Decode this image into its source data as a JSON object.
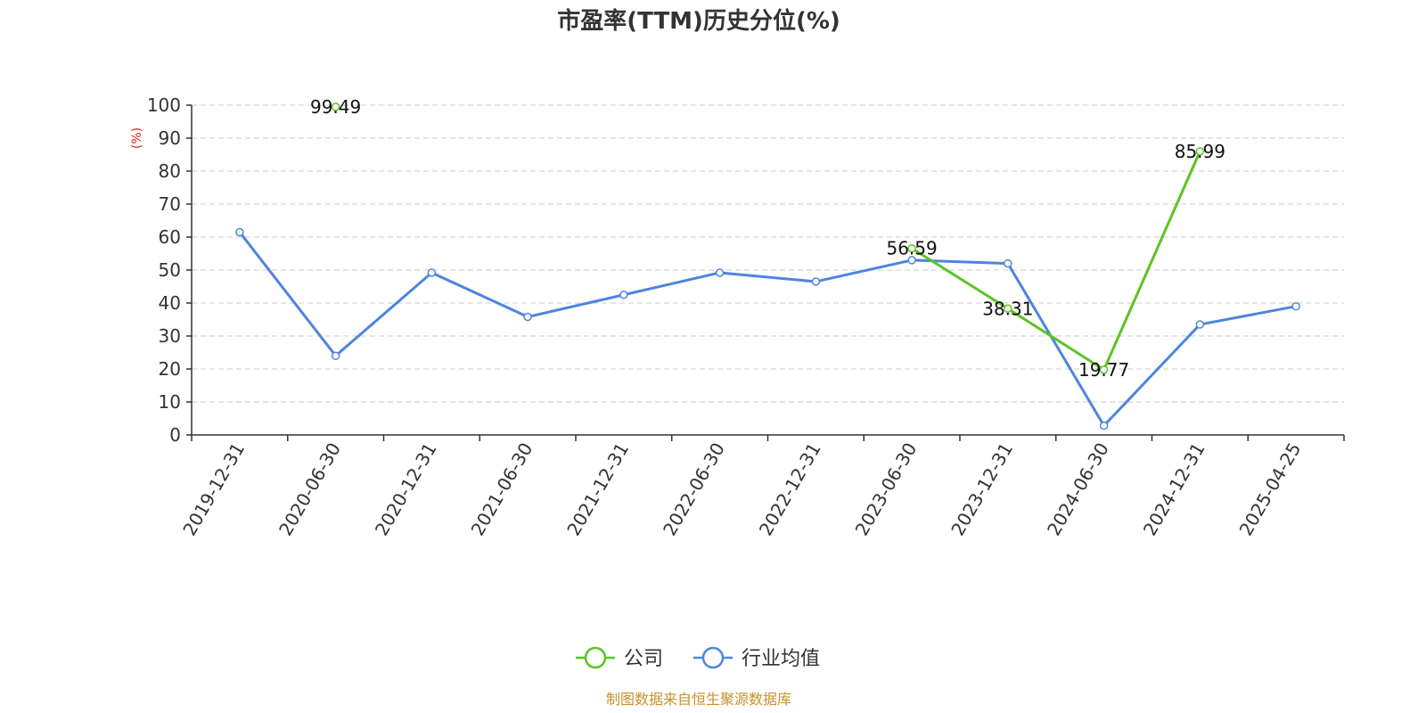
{
  "chart_data": {
    "type": "line",
    "title": "市盈率(TTM)历史分位(%)",
    "ylabel": "(%)",
    "ylim": [
      0,
      100
    ],
    "yticks": [
      0,
      10,
      20,
      30,
      40,
      50,
      60,
      70,
      80,
      90,
      100
    ],
    "grid": true,
    "legend_position": "bottom-center",
    "categories": [
      "2019-12-31",
      "2020-06-30",
      "2020-12-31",
      "2021-06-30",
      "2021-12-31",
      "2022-06-30",
      "2022-12-31",
      "2023-06-30",
      "2023-12-31",
      "2024-06-30",
      "2024-12-31",
      "2025-04-25"
    ],
    "series": [
      {
        "name": "公司",
        "color": "#5bc424",
        "values": [
          null,
          99.49,
          null,
          null,
          null,
          null,
          null,
          56.59,
          38.31,
          19.77,
          85.99,
          null
        ],
        "data_labels": [
          null,
          "99.49",
          null,
          null,
          null,
          null,
          null,
          "56.59",
          "38.31",
          "19.77",
          "85.99",
          null
        ]
      },
      {
        "name": "行业均值",
        "color": "#4e84e0",
        "values": [
          61.5,
          24.0,
          49.2,
          35.8,
          42.5,
          49.2,
          46.5,
          53.0,
          52.0,
          2.8,
          33.5,
          39.0
        ]
      }
    ]
  },
  "source_text": "制图数据来自恒生聚源数据库",
  "colors": {
    "axis": "#333333",
    "grid": "#cccccc",
    "ylabel": "#e8201c",
    "source": "#c8902a"
  }
}
